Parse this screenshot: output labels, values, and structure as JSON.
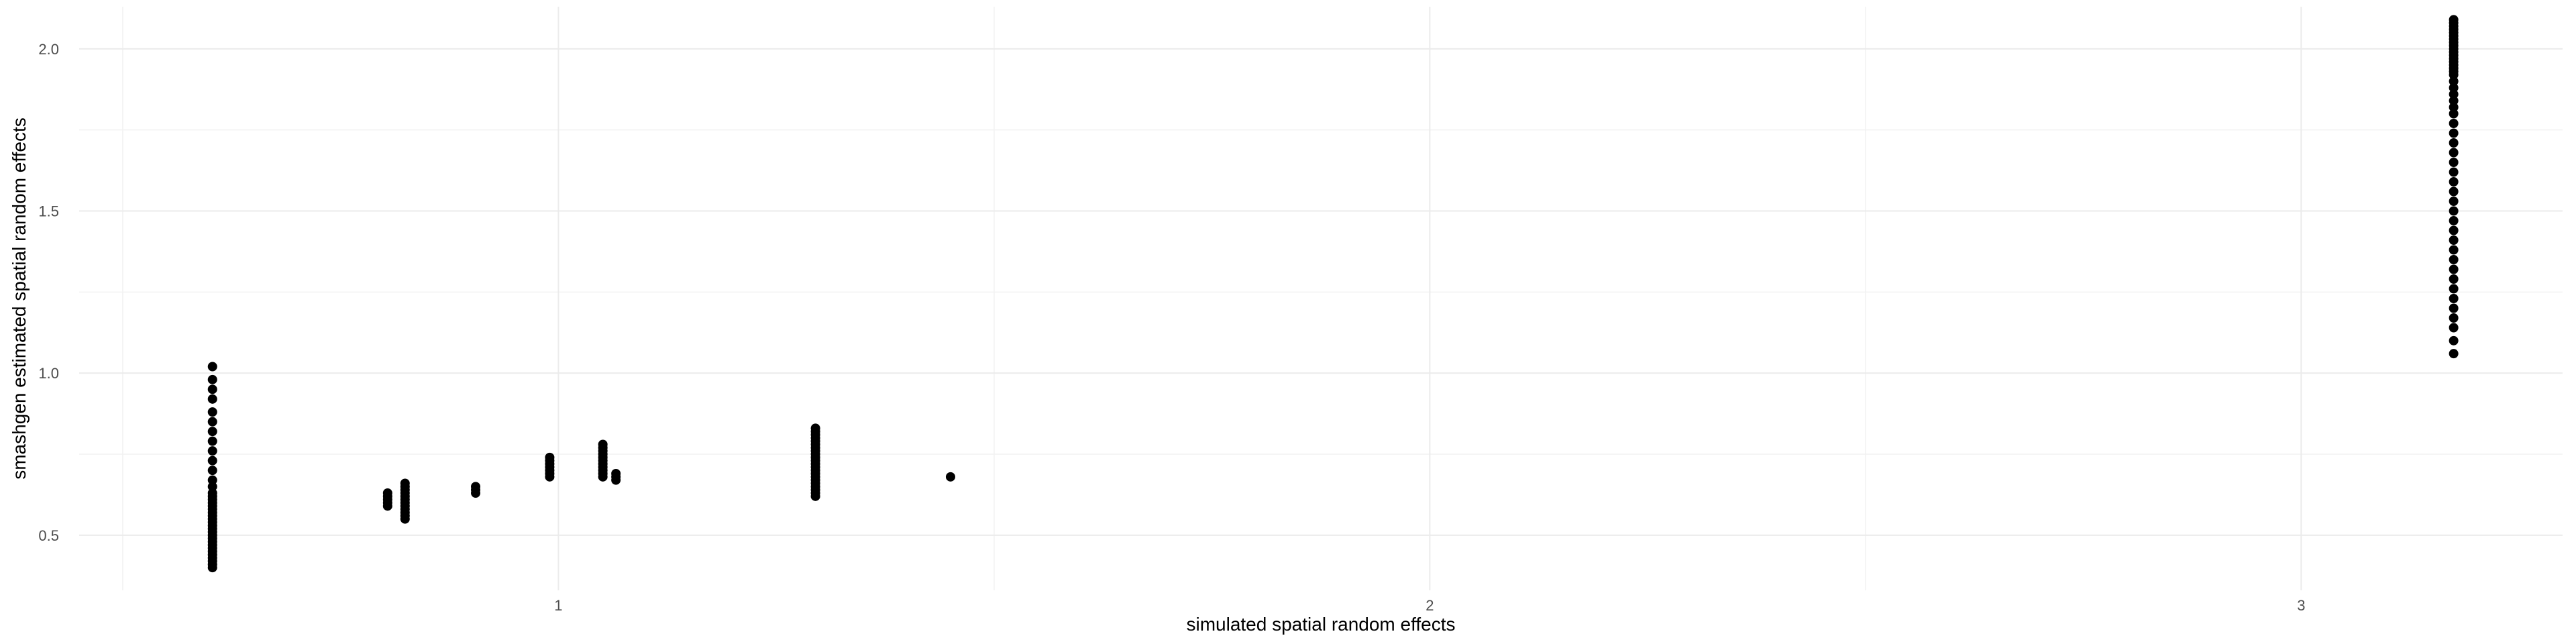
{
  "chart_data": {
    "type": "scatter",
    "xlabel": "simulated spatial random effects",
    "ylabel": "smashgen estimated spatial random effects",
    "xlim": [
      0.45,
      3.3
    ],
    "ylim": [
      0.33,
      2.13
    ],
    "x_ticks": [
      1,
      2,
      3
    ],
    "y_ticks": [
      0.5,
      1.0,
      1.5,
      2.0
    ],
    "x_tick_labels": [
      "1",
      "2",
      "3"
    ],
    "y_tick_labels": [
      "0.5",
      "1.0",
      "1.5",
      "2.0"
    ],
    "grid": true,
    "point_color": "#000000",
    "series": [
      {
        "values": [
          {
            "x": 0.603,
            "y": 0.4
          },
          {
            "x": 0.603,
            "y": 0.41
          },
          {
            "x": 0.603,
            "y": 0.42
          },
          {
            "x": 0.603,
            "y": 0.43
          },
          {
            "x": 0.603,
            "y": 0.44
          },
          {
            "x": 0.603,
            "y": 0.45
          },
          {
            "x": 0.603,
            "y": 0.46
          },
          {
            "x": 0.603,
            "y": 0.47
          },
          {
            "x": 0.603,
            "y": 0.48
          },
          {
            "x": 0.603,
            "y": 0.49
          },
          {
            "x": 0.603,
            "y": 0.5
          },
          {
            "x": 0.603,
            "y": 0.51
          },
          {
            "x": 0.603,
            "y": 0.52
          },
          {
            "x": 0.603,
            "y": 0.53
          },
          {
            "x": 0.603,
            "y": 0.54
          },
          {
            "x": 0.603,
            "y": 0.55
          },
          {
            "x": 0.603,
            "y": 0.56
          },
          {
            "x": 0.603,
            "y": 0.57
          },
          {
            "x": 0.603,
            "y": 0.58
          },
          {
            "x": 0.603,
            "y": 0.59
          },
          {
            "x": 0.603,
            "y": 0.6
          },
          {
            "x": 0.603,
            "y": 0.61
          },
          {
            "x": 0.603,
            "y": 0.62
          },
          {
            "x": 0.603,
            "y": 0.63
          },
          {
            "x": 0.603,
            "y": 0.65
          },
          {
            "x": 0.603,
            "y": 0.67
          },
          {
            "x": 0.603,
            "y": 0.7
          },
          {
            "x": 0.603,
            "y": 0.73
          },
          {
            "x": 0.603,
            "y": 0.76
          },
          {
            "x": 0.603,
            "y": 0.79
          },
          {
            "x": 0.603,
            "y": 0.82
          },
          {
            "x": 0.603,
            "y": 0.85
          },
          {
            "x": 0.603,
            "y": 0.88
          },
          {
            "x": 0.603,
            "y": 0.92
          },
          {
            "x": 0.603,
            "y": 0.95
          },
          {
            "x": 0.603,
            "y": 0.98
          },
          {
            "x": 0.603,
            "y": 1.02
          },
          {
            "x": 0.804,
            "y": 0.59
          },
          {
            "x": 0.804,
            "y": 0.6
          },
          {
            "x": 0.804,
            "y": 0.61
          },
          {
            "x": 0.804,
            "y": 0.62
          },
          {
            "x": 0.804,
            "y": 0.63
          },
          {
            "x": 0.824,
            "y": 0.55
          },
          {
            "x": 0.824,
            "y": 0.56
          },
          {
            "x": 0.824,
            "y": 0.57
          },
          {
            "x": 0.824,
            "y": 0.58
          },
          {
            "x": 0.824,
            "y": 0.59
          },
          {
            "x": 0.824,
            "y": 0.6
          },
          {
            "x": 0.824,
            "y": 0.61
          },
          {
            "x": 0.824,
            "y": 0.62
          },
          {
            "x": 0.824,
            "y": 0.63
          },
          {
            "x": 0.824,
            "y": 0.64
          },
          {
            "x": 0.824,
            "y": 0.65
          },
          {
            "x": 0.824,
            "y": 0.66
          },
          {
            "x": 0.905,
            "y": 0.63
          },
          {
            "x": 0.905,
            "y": 0.64
          },
          {
            "x": 0.905,
            "y": 0.65
          },
          {
            "x": 0.99,
            "y": 0.68
          },
          {
            "x": 0.99,
            "y": 0.69
          },
          {
            "x": 0.99,
            "y": 0.7
          },
          {
            "x": 0.99,
            "y": 0.71
          },
          {
            "x": 0.99,
            "y": 0.72
          },
          {
            "x": 0.99,
            "y": 0.73
          },
          {
            "x": 0.99,
            "y": 0.74
          },
          {
            "x": 1.051,
            "y": 0.68
          },
          {
            "x": 1.051,
            "y": 0.69
          },
          {
            "x": 1.051,
            "y": 0.7
          },
          {
            "x": 1.051,
            "y": 0.71
          },
          {
            "x": 1.051,
            "y": 0.72
          },
          {
            "x": 1.051,
            "y": 0.73
          },
          {
            "x": 1.051,
            "y": 0.74
          },
          {
            "x": 1.051,
            "y": 0.75
          },
          {
            "x": 1.051,
            "y": 0.76
          },
          {
            "x": 1.051,
            "y": 0.77
          },
          {
            "x": 1.051,
            "y": 0.78
          },
          {
            "x": 1.066,
            "y": 0.67
          },
          {
            "x": 1.066,
            "y": 0.68
          },
          {
            "x": 1.066,
            "y": 0.69
          },
          {
            "x": 1.295,
            "y": 0.62
          },
          {
            "x": 1.295,
            "y": 0.63
          },
          {
            "x": 1.295,
            "y": 0.64
          },
          {
            "x": 1.295,
            "y": 0.65
          },
          {
            "x": 1.295,
            "y": 0.66
          },
          {
            "x": 1.295,
            "y": 0.67
          },
          {
            "x": 1.295,
            "y": 0.68
          },
          {
            "x": 1.295,
            "y": 0.69
          },
          {
            "x": 1.295,
            "y": 0.7
          },
          {
            "x": 1.295,
            "y": 0.71
          },
          {
            "x": 1.295,
            "y": 0.72
          },
          {
            "x": 1.295,
            "y": 0.73
          },
          {
            "x": 1.295,
            "y": 0.74
          },
          {
            "x": 1.295,
            "y": 0.75
          },
          {
            "x": 1.295,
            "y": 0.76
          },
          {
            "x": 1.295,
            "y": 0.77
          },
          {
            "x": 1.295,
            "y": 0.78
          },
          {
            "x": 1.295,
            "y": 0.79
          },
          {
            "x": 1.295,
            "y": 0.8
          },
          {
            "x": 1.295,
            "y": 0.81
          },
          {
            "x": 1.295,
            "y": 0.82
          },
          {
            "x": 1.295,
            "y": 0.83
          },
          {
            "x": 1.45,
            "y": 0.68
          },
          {
            "x": 3.175,
            "y": 1.06
          },
          {
            "x": 3.175,
            "y": 1.1
          },
          {
            "x": 3.175,
            "y": 1.14
          },
          {
            "x": 3.175,
            "y": 1.17
          },
          {
            "x": 3.175,
            "y": 1.2
          },
          {
            "x": 3.175,
            "y": 1.23
          },
          {
            "x": 3.175,
            "y": 1.26
          },
          {
            "x": 3.175,
            "y": 1.29
          },
          {
            "x": 3.175,
            "y": 1.32
          },
          {
            "x": 3.175,
            "y": 1.35
          },
          {
            "x": 3.175,
            "y": 1.38
          },
          {
            "x": 3.175,
            "y": 1.41
          },
          {
            "x": 3.175,
            "y": 1.44
          },
          {
            "x": 3.175,
            "y": 1.47
          },
          {
            "x": 3.175,
            "y": 1.5
          },
          {
            "x": 3.175,
            "y": 1.53
          },
          {
            "x": 3.175,
            "y": 1.56
          },
          {
            "x": 3.175,
            "y": 1.59
          },
          {
            "x": 3.175,
            "y": 1.62
          },
          {
            "x": 3.175,
            "y": 1.65
          },
          {
            "x": 3.175,
            "y": 1.68
          },
          {
            "x": 3.175,
            "y": 1.71
          },
          {
            "x": 3.175,
            "y": 1.74
          },
          {
            "x": 3.175,
            "y": 1.77
          },
          {
            "x": 3.175,
            "y": 1.8
          },
          {
            "x": 3.175,
            "y": 1.82
          },
          {
            "x": 3.175,
            "y": 1.84
          },
          {
            "x": 3.175,
            "y": 1.86
          },
          {
            "x": 3.175,
            "y": 1.88
          },
          {
            "x": 3.175,
            "y": 1.9
          },
          {
            "x": 3.175,
            "y": 1.92
          },
          {
            "x": 3.175,
            "y": 1.93
          },
          {
            "x": 3.175,
            "y": 1.94
          },
          {
            "x": 3.175,
            "y": 1.95
          },
          {
            "x": 3.175,
            "y": 1.96
          },
          {
            "x": 3.175,
            "y": 1.97
          },
          {
            "x": 3.175,
            "y": 1.98
          },
          {
            "x": 3.175,
            "y": 1.99
          },
          {
            "x": 3.175,
            "y": 2.0
          },
          {
            "x": 3.175,
            "y": 2.01
          },
          {
            "x": 3.175,
            "y": 2.02
          },
          {
            "x": 3.175,
            "y": 2.03
          },
          {
            "x": 3.175,
            "y": 2.04
          },
          {
            "x": 3.175,
            "y": 2.05
          },
          {
            "x": 3.175,
            "y": 2.06
          },
          {
            "x": 3.175,
            "y": 2.07
          },
          {
            "x": 3.175,
            "y": 2.08
          },
          {
            "x": 3.175,
            "y": 2.09
          }
        ]
      }
    ]
  }
}
